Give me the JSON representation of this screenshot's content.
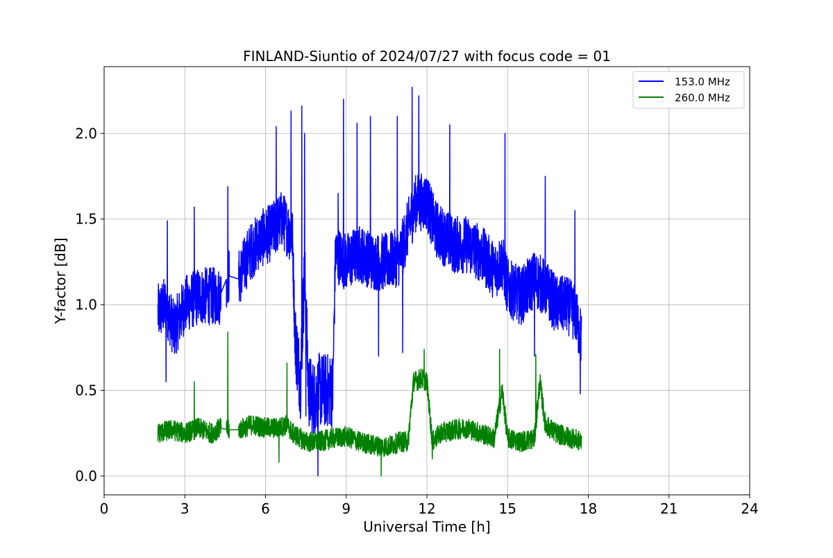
{
  "chart_data": {
    "type": "line",
    "title": "FINLAND-Siuntio of 2024/07/27 with focus code = 01",
    "xlabel": "Universal Time [h]",
    "ylabel": "Y-factor [dB]",
    "xlim": [
      0,
      24
    ],
    "ylim": [
      -0.11,
      2.39
    ],
    "xticks": [
      0,
      3,
      6,
      9,
      12,
      15,
      18,
      21,
      24
    ],
    "yticks": [
      0.0,
      0.5,
      1.0,
      1.5,
      2.0
    ],
    "xtick_labels": [
      "0",
      "3",
      "6",
      "9",
      "12",
      "15",
      "18",
      "21",
      "24"
    ],
    "ytick_labels": [
      "0.0",
      "0.5",
      "1.0",
      "1.5",
      "2.0"
    ],
    "grid": true,
    "legend_position": "top-right",
    "series": [
      {
        "name": "153.0 MHz",
        "color": "#0000ff",
        "x": [
          2.0,
          2.3,
          2.6,
          3.0,
          3.5,
          4.0,
          4.3,
          4.6,
          5.0,
          5.4,
          5.8,
          6.2,
          6.6,
          7.0,
          7.1,
          7.3,
          7.45,
          7.6,
          7.8,
          8.0,
          8.2,
          8.5,
          8.6,
          9.0,
          9.5,
          10.0,
          10.5,
          11.0,
          11.3,
          11.6,
          12.0,
          12.3,
          12.6,
          13.0,
          13.5,
          14.0,
          14.5,
          14.8,
          15.0,
          15.5,
          16.0,
          16.4,
          16.8,
          17.2,
          17.5,
          17.75
        ],
        "y": [
          0.95,
          1.0,
          0.85,
          1.0,
          1.05,
          1.05,
          1.05,
          1.17,
          1.15,
          1.3,
          1.38,
          1.42,
          1.5,
          1.4,
          0.8,
          0.55,
          1.2,
          0.5,
          0.45,
          0.5,
          0.5,
          0.5,
          1.3,
          1.25,
          1.3,
          1.25,
          1.25,
          1.28,
          1.45,
          1.6,
          1.6,
          1.45,
          1.4,
          1.35,
          1.35,
          1.3,
          1.2,
          1.25,
          1.1,
          1.05,
          1.15,
          1.1,
          1.0,
          1.0,
          0.95,
          0.8
        ],
        "spikes": [
          [
            2.35,
            1.49
          ],
          [
            3.35,
            1.57
          ],
          [
            4.6,
            1.69
          ],
          [
            6.4,
            2.04
          ],
          [
            6.95,
            2.13
          ],
          [
            7.35,
            2.16
          ],
          [
            7.45,
            2.0
          ],
          [
            8.7,
            1.65
          ],
          [
            8.9,
            2.2
          ],
          [
            9.4,
            2.06
          ],
          [
            9.9,
            2.1
          ],
          [
            10.9,
            2.1
          ],
          [
            11.45,
            2.27
          ],
          [
            11.7,
            2.22
          ],
          [
            12.85,
            2.05
          ],
          [
            14.9,
            2.0
          ],
          [
            16.4,
            1.75
          ],
          [
            17.5,
            1.55
          ]
        ],
        "dips": [
          [
            2.3,
            0.55
          ],
          [
            7.5,
            0.35
          ],
          [
            7.85,
            0.28
          ],
          [
            7.95,
            0.0
          ],
          [
            10.2,
            0.7
          ],
          [
            11.1,
            0.72
          ],
          [
            16.0,
            0.7
          ],
          [
            17.7,
            0.48
          ]
        ]
      },
      {
        "name": "260.0 MHz",
        "color": "#008000",
        "x": [
          2.0,
          2.5,
          3.0,
          3.5,
          4.0,
          4.3,
          4.6,
          5.0,
          5.5,
          6.0,
          6.5,
          6.8,
          7.0,
          7.5,
          8.0,
          8.5,
          9.0,
          9.5,
          10.0,
          10.5,
          11.0,
          11.3,
          11.5,
          11.8,
          12.0,
          12.2,
          12.5,
          13.0,
          13.5,
          14.0,
          14.5,
          14.8,
          15.0,
          15.5,
          16.0,
          16.2,
          16.4,
          16.8,
          17.2,
          17.75
        ],
        "y": [
          0.25,
          0.27,
          0.25,
          0.28,
          0.25,
          0.28,
          0.27,
          0.27,
          0.3,
          0.28,
          0.28,
          0.3,
          0.25,
          0.2,
          0.2,
          0.22,
          0.23,
          0.2,
          0.18,
          0.17,
          0.2,
          0.2,
          0.55,
          0.57,
          0.55,
          0.2,
          0.25,
          0.27,
          0.28,
          0.25,
          0.22,
          0.5,
          0.22,
          0.2,
          0.22,
          0.55,
          0.3,
          0.25,
          0.23,
          0.2
        ],
        "spikes": [
          [
            3.35,
            0.55
          ],
          [
            4.6,
            0.84
          ],
          [
            6.8,
            0.66
          ],
          [
            11.9,
            0.74
          ],
          [
            14.7,
            0.74
          ],
          [
            16.05,
            0.71
          ]
        ],
        "dips": [
          [
            6.5,
            0.08
          ],
          [
            10.3,
            0.0
          ],
          [
            12.2,
            0.1
          ]
        ]
      }
    ]
  }
}
